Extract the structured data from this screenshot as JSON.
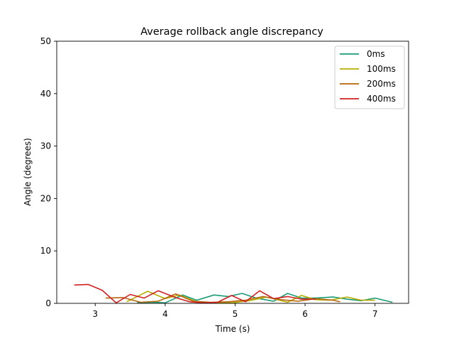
{
  "chart_data": {
    "type": "line",
    "title": "Average rollback angle discrepancy",
    "xlabel": "Time (s)",
    "ylabel": "Angle (degrees)",
    "xlim": [
      2.45,
      7.48
    ],
    "ylim": [
      0,
      50
    ],
    "xticks": [
      3,
      4,
      5,
      6,
      7
    ],
    "yticks": [
      0,
      10,
      20,
      30,
      40,
      50
    ],
    "grid": false,
    "legend_position": "top-right",
    "series": [
      {
        "name": "0ms",
        "color": "#1a9a74",
        "x": [
          3.6,
          3.85,
          4.0,
          4.25,
          4.45,
          4.7,
          4.9,
          5.1,
          5.3,
          5.55,
          5.75,
          5.95,
          6.15,
          6.4,
          6.6,
          6.8,
          7.0,
          7.25
        ],
        "y": [
          0.15,
          0.2,
          0.1,
          1.6,
          0.6,
          1.6,
          1.3,
          1.9,
          1.0,
          0.4,
          1.9,
          1.0,
          1.0,
          1.2,
          0.8,
          0.5,
          1.0,
          0.2
        ]
      },
      {
        "name": "100ms",
        "color": "#b8ad00",
        "x": [
          3.45,
          3.75,
          4.0,
          4.2,
          4.45,
          4.75,
          4.95,
          5.2,
          5.45,
          5.75,
          5.95,
          6.15,
          6.35,
          6.6,
          6.8,
          7.0
        ],
        "y": [
          0.3,
          2.3,
          0.9,
          1.6,
          0.3,
          0.1,
          0.1,
          0.5,
          1.2,
          0.2,
          1.5,
          0.7,
          0.6,
          1.2,
          0.6,
          0.6
        ]
      },
      {
        "name": "200ms",
        "color": "#b5650c",
        "x": [
          3.15,
          3.4,
          3.65,
          3.9,
          4.15,
          4.4,
          4.65,
          4.9,
          5.15,
          5.4,
          5.65,
          5.9,
          6.15,
          6.4,
          6.5
        ],
        "y": [
          1.0,
          1.1,
          0.2,
          0.4,
          1.8,
          0.4,
          0.2,
          0.3,
          0.6,
          1.3,
          0.7,
          0.4,
          0.9,
          0.6,
          0.3
        ]
      },
      {
        "name": "400ms",
        "color": "#d02020",
        "x": [
          2.7,
          2.9,
          3.1,
          3.3,
          3.5,
          3.7,
          3.9,
          4.15,
          4.35,
          4.55,
          4.75,
          4.95,
          5.15,
          5.35,
          5.55,
          5.75,
          5.95,
          6.15
        ],
        "y": [
          3.5,
          3.6,
          2.5,
          0.1,
          1.7,
          1.0,
          2.4,
          1.1,
          0.3,
          0.1,
          0.2,
          1.5,
          0.3,
          2.4,
          0.9,
          1.3,
          0.8,
          0.8
        ]
      }
    ]
  }
}
